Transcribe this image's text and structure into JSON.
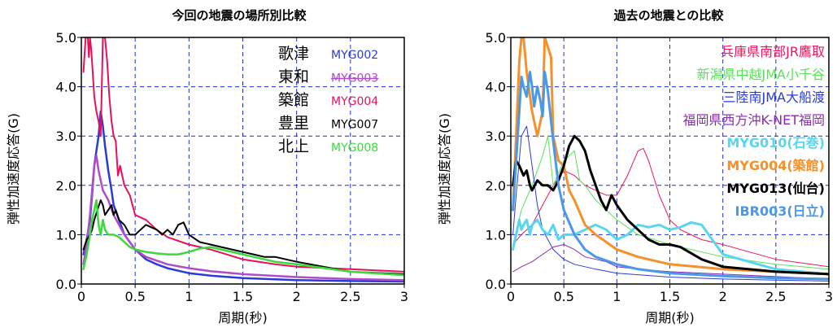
{
  "chart_data": [
    {
      "type": "line",
      "title": "今回の地震の場所別比較",
      "xlabel": "周期(秒)",
      "ylabel": "弾性加速度応答(G)",
      "xlim": [
        0,
        3
      ],
      "ylim": [
        0,
        5
      ],
      "x_ticks": [
        0,
        0.5,
        1,
        1.5,
        2,
        2.5,
        3
      ],
      "x_tick_labels": [
        "0",
        "0.5",
        "1",
        "1.5",
        "2",
        "2.5",
        "3"
      ],
      "y_ticks": [
        0,
        1,
        2,
        3,
        4,
        5
      ],
      "y_tick_labels": [
        "0.0",
        "1.0",
        "2.0",
        "3.0",
        "4.0",
        "5.0"
      ],
      "grid": true,
      "legend_position": "top-right",
      "series": [
        {
          "name": "歌津",
          "code": "MYG002",
          "color": "#2a3bd6",
          "width": 2.5,
          "x": [
            0.02,
            0.05,
            0.08,
            0.1,
            0.12,
            0.14,
            0.16,
            0.18,
            0.2,
            0.22,
            0.25,
            0.28,
            0.3,
            0.35,
            0.4,
            0.5,
            0.6,
            0.7,
            0.8,
            1.0,
            1.2,
            1.5,
            2.0,
            2.5,
            3.0
          ],
          "y": [
            0.6,
            0.9,
            1.3,
            1.8,
            2.4,
            2.7,
            3.0,
            3.5,
            3.2,
            2.8,
            2.3,
            1.9,
            1.6,
            1.3,
            1.0,
            0.7,
            0.5,
            0.4,
            0.32,
            0.22,
            0.17,
            0.12,
            0.08,
            0.06,
            0.05
          ]
        },
        {
          "name": "東和",
          "code": "MYG003",
          "color": "#b04ccc",
          "width": 2.5,
          "x": [
            0.02,
            0.05,
            0.08,
            0.1,
            0.12,
            0.14,
            0.16,
            0.18,
            0.2,
            0.25,
            0.3,
            0.35,
            0.4,
            0.5,
            0.6,
            0.8,
            1.0,
            1.2,
            1.5,
            2.0,
            2.5,
            3.0
          ],
          "y": [
            0.4,
            0.8,
            1.4,
            1.9,
            2.4,
            2.6,
            2.3,
            2.1,
            1.9,
            1.7,
            1.4,
            1.2,
            1.0,
            0.7,
            0.55,
            0.4,
            0.32,
            0.26,
            0.2,
            0.14,
            0.1,
            0.08
          ]
        },
        {
          "name": "築館",
          "code": "MYG004",
          "color": "#e8105a",
          "width": 2,
          "x": [
            0.02,
            0.04,
            0.05,
            0.06,
            0.07,
            0.08,
            0.09,
            0.1,
            0.12,
            0.14,
            0.16,
            0.18,
            0.2,
            0.22,
            0.24,
            0.26,
            0.28,
            0.3,
            0.32,
            0.34,
            0.36,
            0.4,
            0.45,
            0.5,
            0.6,
            0.7,
            0.8,
            1.0,
            1.2,
            1.5,
            1.8,
            2.0,
            2.5,
            3.0
          ],
          "y": [
            4.3,
            5.0,
            5.0,
            5.0,
            4.6,
            5.0,
            4.8,
            4.5,
            3.8,
            3.5,
            3.3,
            3.0,
            5.0,
            5.0,
            4.5,
            3.8,
            3.3,
            3.0,
            2.9,
            2.2,
            2.4,
            2.0,
            1.8,
            1.4,
            1.3,
            1.1,
            0.95,
            0.8,
            0.7,
            0.5,
            0.4,
            0.35,
            0.3,
            0.25
          ]
        },
        {
          "name": "豊里",
          "code": "MYG007",
          "color": "#000000",
          "width": 2,
          "x": [
            0.02,
            0.05,
            0.08,
            0.1,
            0.12,
            0.15,
            0.18,
            0.2,
            0.22,
            0.25,
            0.28,
            0.3,
            0.32,
            0.35,
            0.4,
            0.45,
            0.5,
            0.55,
            0.6,
            0.65,
            0.7,
            0.75,
            0.8,
            0.85,
            0.9,
            0.95,
            1.0,
            1.1,
            1.2,
            1.3,
            1.4,
            1.5,
            1.6,
            1.7,
            1.8,
            2.0,
            2.5,
            3.0
          ],
          "y": [
            0.7,
            0.9,
            1.0,
            1.1,
            1.3,
            1.5,
            1.7,
            1.6,
            1.4,
            1.5,
            1.6,
            1.4,
            1.5,
            1.3,
            1.2,
            1.0,
            1.0,
            1.1,
            1.2,
            1.15,
            1.1,
            1.0,
            1.1,
            1.0,
            1.2,
            1.25,
            1.0,
            0.85,
            0.8,
            0.75,
            0.7,
            0.65,
            0.6,
            0.55,
            0.55,
            0.45,
            0.25,
            0.2
          ]
        },
        {
          "name": "北上",
          "code": "MYG008",
          "color": "#3cd93c",
          "width": 2.5,
          "x": [
            0.02,
            0.05,
            0.08,
            0.1,
            0.12,
            0.14,
            0.16,
            0.18,
            0.2,
            0.22,
            0.25,
            0.3,
            0.35,
            0.4,
            0.45,
            0.5,
            0.6,
            0.7,
            0.8,
            0.9,
            1.0,
            1.1,
            1.2,
            1.3,
            1.4,
            1.5,
            1.6,
            1.8,
            2.0,
            2.5,
            3.0
          ],
          "y": [
            0.3,
            0.6,
            1.0,
            1.3,
            1.5,
            1.7,
            1.2,
            1.0,
            1.3,
            1.1,
            1.0,
            1.0,
            0.95,
            0.85,
            0.75,
            0.7,
            0.65,
            0.62,
            0.6,
            0.6,
            0.65,
            0.72,
            0.75,
            0.7,
            0.65,
            0.6,
            0.55,
            0.45,
            0.4,
            0.25,
            0.18
          ]
        }
      ]
    },
    {
      "type": "line",
      "title": "過去の地震との比較",
      "xlabel": "周期(秒)",
      "ylabel": "弾性加速度応答(G)",
      "xlim": [
        0,
        3
      ],
      "ylim": [
        0,
        5
      ],
      "x_ticks": [
        0,
        0.5,
        1,
        1.5,
        2,
        2.5,
        3
      ],
      "x_tick_labels": [
        "0",
        "0.5",
        "1",
        "1.5",
        "2",
        "2.5",
        "3"
      ],
      "y_ticks": [
        0,
        1,
        2,
        3,
        4,
        5
      ],
      "y_tick_labels": [
        "0.0",
        "1.0",
        "2.0",
        "3.0",
        "4.0",
        "5.0"
      ],
      "grid": true,
      "legend_position": "top-right",
      "series": [
        {
          "name": "兵庫県南部JR鷹取",
          "color": "#f0145a",
          "width": 1,
          "x": [
            0.02,
            0.1,
            0.2,
            0.3,
            0.4,
            0.5,
            0.6,
            0.7,
            0.8,
            0.9,
            1.0,
            1.1,
            1.2,
            1.25,
            1.3,
            1.4,
            1.5,
            1.6,
            1.8,
            2.0,
            2.5,
            3.0
          ],
          "y": [
            0.8,
            1.0,
            1.2,
            1.6,
            2.0,
            2.3,
            2.2,
            2.0,
            1.9,
            1.8,
            1.8,
            2.2,
            2.7,
            2.75,
            2.5,
            1.8,
            1.3,
            1.1,
            0.9,
            0.8,
            0.5,
            0.35
          ]
        },
        {
          "name": "新潟県中越JMA小千谷",
          "color": "#5ae05a",
          "width": 1,
          "x": [
            0.02,
            0.1,
            0.2,
            0.3,
            0.35,
            0.4,
            0.5,
            0.6,
            0.65,
            0.7,
            0.8,
            0.9,
            1.0,
            1.2,
            1.5,
            2.0,
            2.5,
            3.0
          ],
          "y": [
            0.8,
            1.5,
            2.0,
            2.6,
            3.0,
            2.0,
            2.5,
            2.7,
            2.1,
            2.0,
            1.7,
            1.5,
            1.3,
            1.0,
            0.8,
            0.55,
            0.4,
            0.3
          ]
        },
        {
          "name": "三陸南JMA大船渡",
          "color": "#2a3bd6",
          "width": 1,
          "x": [
            0.02,
            0.05,
            0.08,
            0.1,
            0.15,
            0.2,
            0.25,
            0.3,
            0.4,
            0.5,
            0.6,
            0.8,
            1.0,
            1.5,
            2.0,
            2.5,
            3.0
          ],
          "y": [
            1.0,
            1.8,
            2.5,
            3.0,
            3.2,
            2.4,
            1.6,
            1.1,
            0.7,
            0.5,
            0.4,
            0.3,
            0.22,
            0.14,
            0.1,
            0.08,
            0.06
          ]
        },
        {
          "name": "福岡県西方沖K-NET福岡",
          "color": "#8a2ab0",
          "width": 1,
          "x": [
            0.02,
            0.1,
            0.2,
            0.3,
            0.4,
            0.5,
            0.6,
            0.7,
            0.8,
            0.9,
            1.0,
            1.2,
            1.5,
            2.0,
            2.5,
            3.0
          ],
          "y": [
            0.25,
            0.35,
            0.45,
            0.6,
            0.75,
            0.8,
            0.7,
            0.55,
            0.5,
            0.45,
            0.35,
            0.3,
            0.25,
            0.2,
            0.15,
            0.1
          ]
        },
        {
          "name": "MYG010(石巻)",
          "color": "#58d6f0",
          "width": 3,
          "x": [
            0.02,
            0.05,
            0.08,
            0.1,
            0.12,
            0.15,
            0.18,
            0.2,
            0.25,
            0.3,
            0.35,
            0.4,
            0.45,
            0.5,
            0.6,
            0.7,
            0.8,
            0.9,
            1.0,
            1.1,
            1.2,
            1.3,
            1.4,
            1.5,
            1.6,
            1.7,
            1.8,
            1.9,
            2.0,
            2.5,
            3.0
          ],
          "y": [
            0.7,
            1.0,
            1.3,
            1.1,
            1.2,
            1.3,
            1.0,
            1.2,
            1.3,
            1.1,
            1.0,
            1.2,
            0.9,
            1.0,
            1.0,
            1.1,
            1.2,
            1.1,
            0.9,
            1.0,
            1.2,
            1.15,
            1.2,
            1.1,
            1.15,
            1.25,
            1.2,
            0.9,
            0.6,
            0.3,
            0.2
          ]
        },
        {
          "name": "MYG004(築館)",
          "color": "#f5902a",
          "width": 3,
          "x": [
            0.02,
            0.05,
            0.08,
            0.1,
            0.12,
            0.15,
            0.2,
            0.25,
            0.3,
            0.32,
            0.35,
            0.38,
            0.4,
            0.45,
            0.5,
            0.55,
            0.6,
            0.7,
            0.8,
            0.9,
            1.0,
            1.2,
            1.5,
            2.0,
            2.5,
            3.0
          ],
          "y": [
            1.5,
            3.0,
            4.5,
            5.0,
            5.0,
            4.3,
            3.5,
            3.0,
            3.5,
            5.0,
            4.8,
            4.6,
            3.0,
            2.5,
            2.4,
            1.9,
            1.7,
            1.2,
            1.0,
            0.85,
            0.7,
            0.55,
            0.4,
            0.3,
            0.25,
            0.2
          ]
        },
        {
          "name": "MYG013(仙台)",
          "color": "#000000",
          "width": 3,
          "x": [
            0.02,
            0.05,
            0.08,
            0.1,
            0.12,
            0.15,
            0.18,
            0.2,
            0.25,
            0.3,
            0.35,
            0.4,
            0.45,
            0.5,
            0.55,
            0.6,
            0.65,
            0.7,
            0.75,
            0.8,
            0.85,
            0.9,
            0.95,
            1.0,
            1.1,
            1.2,
            1.3,
            1.4,
            1.5,
            1.6,
            1.8,
            2.0,
            2.5,
            3.0
          ],
          "y": [
            2.0,
            2.5,
            2.4,
            2.3,
            2.2,
            2.3,
            2.0,
            1.9,
            2.1,
            2.0,
            2.0,
            1.9,
            2.1,
            2.4,
            2.8,
            3.0,
            2.9,
            2.7,
            2.3,
            2.0,
            1.7,
            1.5,
            1.8,
            1.6,
            1.3,
            1.1,
            0.9,
            0.8,
            0.8,
            0.75,
            0.5,
            0.35,
            0.25,
            0.2
          ]
        },
        {
          "name": "IBR003(日立)",
          "color": "#4a98e8",
          "width": 3,
          "x": [
            0.02,
            0.05,
            0.08,
            0.1,
            0.12,
            0.15,
            0.18,
            0.2,
            0.22,
            0.25,
            0.28,
            0.3,
            0.32,
            0.35,
            0.4,
            0.45,
            0.5,
            0.6,
            0.7,
            0.8,
            1.0,
            1.2,
            1.5,
            2.0,
            2.5,
            3.0
          ],
          "y": [
            1.5,
            2.5,
            3.5,
            4.2,
            4.0,
            3.8,
            4.3,
            4.0,
            3.6,
            4.0,
            3.7,
            3.4,
            4.3,
            3.9,
            2.9,
            2.0,
            1.5,
            1.0,
            0.7,
            0.55,
            0.4,
            0.3,
            0.22,
            0.16,
            0.12,
            0.1
          ]
        }
      ]
    }
  ]
}
